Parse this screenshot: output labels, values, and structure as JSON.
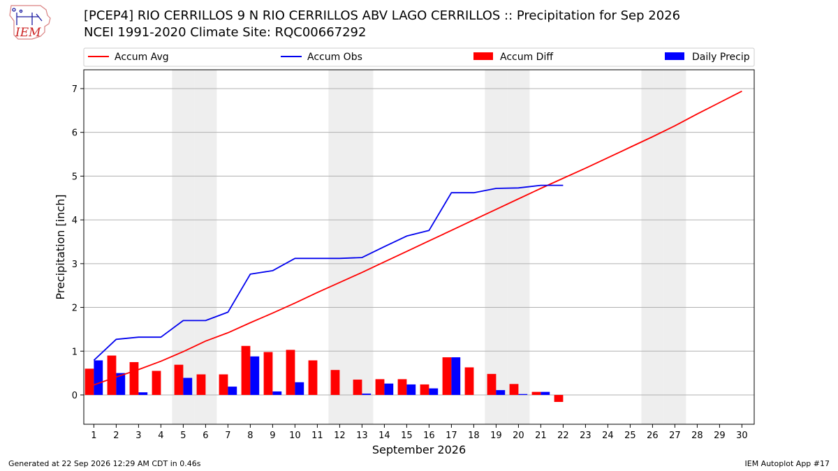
{
  "header": {
    "logo_text": "IEM",
    "title_line1": "[PCEP4] RIO CERRILLOS 9 N RIO CERRILLOS ABV LAGO CERRILLOS :: Precipitation for Sep 2026",
    "title_line2": "NCEI 1991-2020 Climate Site: RQC00667292"
  },
  "footer": {
    "left": "Generated at 22 Sep 2026 12:29 AM CDT in 0.46s",
    "right": "IEM Autoplot App #17"
  },
  "colors": {
    "accum_avg": "#ff0000",
    "accum_obs": "#0000ee",
    "accum_diff": "#ff0000",
    "daily_precip": "#0000ff",
    "weekend_shade": "#eeeeee",
    "grid": "#b0b0b0"
  },
  "chart_data": {
    "type": "bar",
    "xlabel": "September 2026",
    "ylabel": "Precipitation [inch]",
    "days": [
      1,
      2,
      3,
      4,
      5,
      6,
      7,
      8,
      9,
      10,
      11,
      12,
      13,
      14,
      15,
      16,
      17,
      18,
      19,
      20,
      21,
      22,
      23,
      24,
      25,
      26,
      27,
      28,
      29,
      30
    ],
    "x_tick_labels": [
      "1",
      "2",
      "3",
      "4",
      "5",
      "6",
      "7",
      "8",
      "9",
      "10",
      "11",
      "12",
      "13",
      "14",
      "15",
      "16",
      "17",
      "18",
      "19",
      "20",
      "21",
      "22",
      "23",
      "24",
      "25",
      "26",
      "27",
      "28",
      "29",
      "30"
    ],
    "y_ticks": [
      0,
      1,
      2,
      3,
      4,
      5,
      6,
      7
    ],
    "y_tick_labels": [
      "0",
      "1",
      "2",
      "3",
      "4",
      "5",
      "6",
      "7"
    ],
    "xlim": [
      0.55,
      30.55
    ],
    "ylim": [
      -0.67,
      7.43
    ],
    "grid": "horizontal",
    "legend_position": "top",
    "shaded_days": [
      5,
      6,
      12,
      13,
      19,
      20,
      26,
      27
    ],
    "legend": [
      "Accum Avg",
      "Accum Obs",
      "Accum Diff",
      "Daily Precip"
    ],
    "series": [
      {
        "name": "Accum Avg",
        "kind": "line",
        "values": [
          0.23,
          0.41,
          0.58,
          0.77,
          0.99,
          1.23,
          1.42,
          1.65,
          1.87,
          2.1,
          2.34,
          2.57,
          2.8,
          3.04,
          3.28,
          3.52,
          3.76,
          4.0,
          4.24,
          4.48,
          4.72,
          4.95,
          5.18,
          5.42,
          5.66,
          5.9,
          6.15,
          6.42,
          6.68,
          6.94
        ]
      },
      {
        "name": "Accum Obs",
        "kind": "line",
        "values": [
          0.79,
          1.27,
          1.32,
          1.32,
          1.7,
          1.7,
          1.89,
          2.76,
          2.84,
          3.12,
          3.12,
          3.12,
          3.14,
          3.39,
          3.63,
          3.76,
          4.62,
          4.62,
          4.72,
          4.73,
          4.79,
          4.79
        ]
      },
      {
        "name": "Accum Diff",
        "kind": "bar",
        "values": [
          0.6,
          0.9,
          0.75,
          0.55,
          0.69,
          0.47,
          0.47,
          1.12,
          0.98,
          1.03,
          0.79,
          0.57,
          0.35,
          0.36,
          0.36,
          0.24,
          0.86,
          0.63,
          0.48,
          0.25,
          0.07,
          -0.16
        ]
      },
      {
        "name": "Daily Precip",
        "kind": "bar",
        "values": [
          0.79,
          0.5,
          0.06,
          0.0,
          0.39,
          0.0,
          0.19,
          0.88,
          0.08,
          0.29,
          0.0,
          0.0,
          0.03,
          0.26,
          0.24,
          0.15,
          0.86,
          0.0,
          0.11,
          0.02,
          0.07,
          0.0
        ]
      }
    ]
  }
}
